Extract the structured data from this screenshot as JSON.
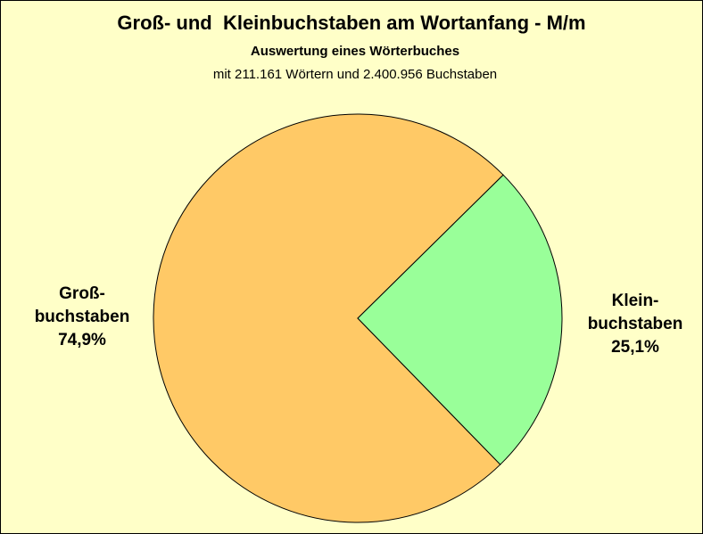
{
  "chart_data": {
    "type": "pie",
    "title": "Groß- und  Kleinbuchstaben am Wortanfang - M/m",
    "subtitle": "Auswertung eines Wörterbuches",
    "note": "mit 211.161 Wörtern und 2.400.956 Buchstaben",
    "categories": [
      "Groß-\nbuchstaben",
      "Klein-\nbuchstaben"
    ],
    "values": [
      74.9,
      25.1
    ],
    "value_labels": [
      "74,9%",
      "25,1%"
    ],
    "colors": [
      "#ffc966",
      "#99ff99"
    ]
  }
}
